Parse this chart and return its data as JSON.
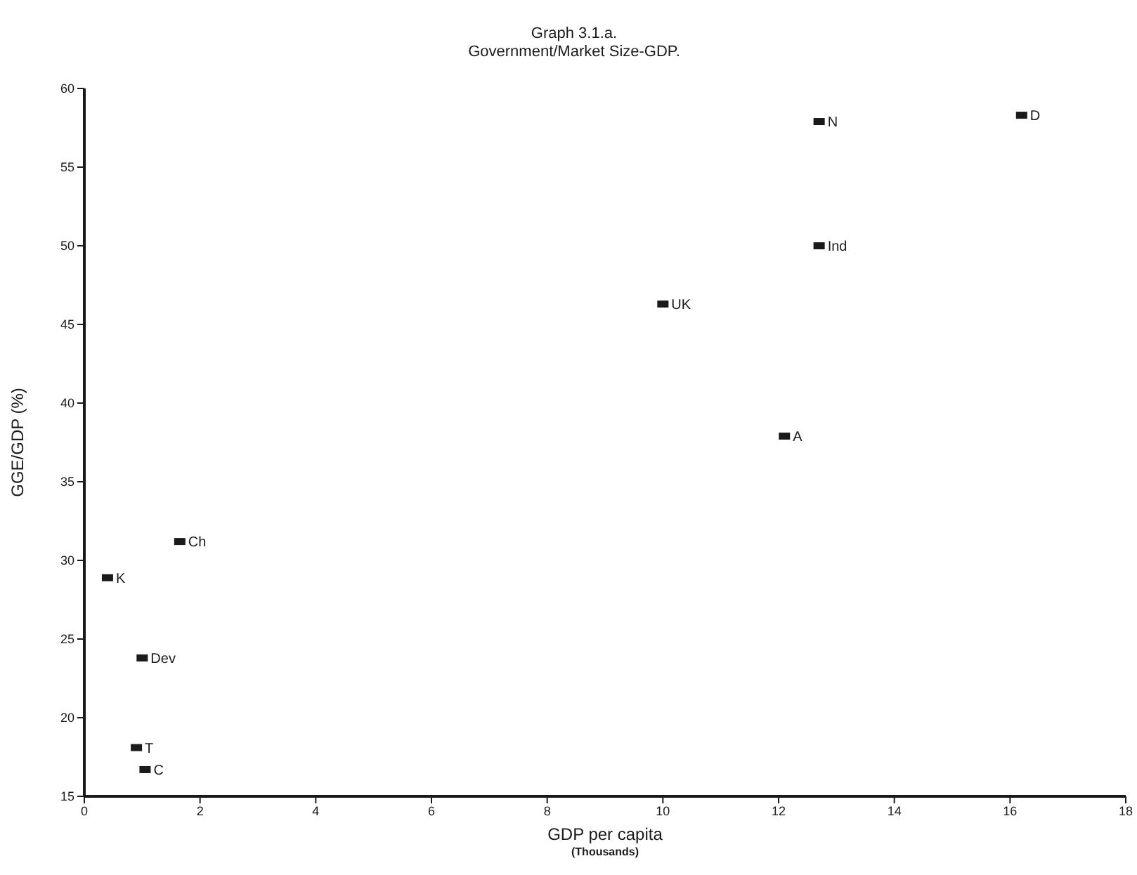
{
  "chart_data": {
    "type": "scatter",
    "title": "Graph 3.1.a.",
    "subtitle": "Government/Market Size-GDP.",
    "xlabel": "GDP per capita\n(Thousands)",
    "ylabel": "GGE/GDP (%)",
    "series": [
      {
        "color": "#1a1a1a",
        "x": [
          12.7,
          16.2,
          12.7,
          10.0,
          12.1,
          1.65,
          0.4,
          1.0,
          0.9,
          1.05
        ],
        "values": [
          57.9,
          58.3,
          50.0,
          46.3,
          37.9,
          31.2,
          28.9,
          23.8,
          18.1,
          16.7
        ]
      }
    ],
    "annotations": [
      {
        "text": "N",
        "x": 12.7,
        "y": 57.9
      },
      {
        "text": "D",
        "x": 16.2,
        "y": 58.3
      },
      {
        "text": "Ind",
        "x": 12.7,
        "y": 50.0
      },
      {
        "text": "UK",
        "x": 10.0,
        "y": 46.3
      },
      {
        "text": "A",
        "x": 12.1,
        "y": 37.9
      },
      {
        "text": "Ch",
        "x": 1.65,
        "y": 31.2
      },
      {
        "text": "K",
        "x": 0.4,
        "y": 28.9
      },
      {
        "text": "Dev",
        "x": 1.0,
        "y": 23.8
      },
      {
        "text": "T",
        "x": 0.9,
        "y": 18.1
      },
      {
        "text": "C",
        "x": 1.05,
        "y": 16.7
      }
    ],
    "xlim": [
      0,
      18
    ],
    "xticks": [
      0,
      2,
      4,
      6,
      8,
      10,
      12,
      14,
      16,
      18
    ],
    "ylim": [
      15,
      60
    ],
    "yticks": [
      15,
      20,
      25,
      30,
      35,
      40,
      45,
      50,
      55,
      60
    ],
    "grid": false,
    "legend": false,
    "marker": "square"
  }
}
